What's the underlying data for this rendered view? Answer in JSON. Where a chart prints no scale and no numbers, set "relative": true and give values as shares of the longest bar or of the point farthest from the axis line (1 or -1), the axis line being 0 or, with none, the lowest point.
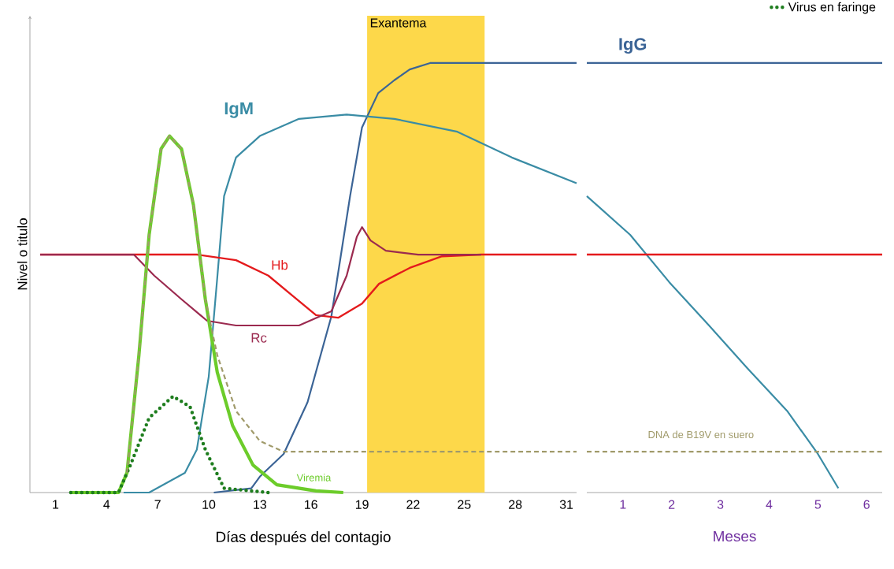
{
  "chart_data": [
    {
      "type": "line",
      "relative": true,
      "xlabel": "Días después del contagio",
      "ylabel": "Nivel o titulo",
      "xlim": [
        -0.5,
        31.6
      ],
      "xticks": [
        1,
        4,
        7,
        10,
        13,
        16,
        19,
        22,
        25,
        28,
        31
      ],
      "grid": false,
      "marker": "none",
      "legend": "top right",
      "bands": [
        {
          "axis": "x",
          "from": 19.3,
          "to": 26.2,
          "label": "Exantema",
          "color": "#fdd84a"
        }
      ],
      "series": [
        {
          "name": "IgG",
          "color": "#3b6496",
          "x": [
            10.3,
            12.5,
            13.0,
            14.4,
            15.8,
            17.2,
            18.3,
            19.0,
            19.95,
            20.9,
            21.8,
            23.0,
            31.6
          ],
          "values": [
            0,
            0.01,
            0.037,
            0.09,
            0.21,
            0.41,
            0.69,
            0.85,
            0.93,
            0.96,
            0.985,
            1,
            1
          ]
        },
        {
          "name": "IgM",
          "color": "#3a8ca5",
          "x": [
            5.0,
            6.5,
            8.6,
            9.3,
            10.0,
            10.5,
            10.9,
            11.6,
            13.0,
            15.3,
            18.1,
            20.9,
            24.6,
            27.8,
            31.6
          ],
          "values": [
            0,
            0,
            0.046,
            0.1,
            0.27,
            0.5,
            0.69,
            0.78,
            0.83,
            0.87,
            0.88,
            0.87,
            0.84,
            0.78,
            0.72
          ]
        },
        {
          "name": "Hb",
          "color": "#e41a1c",
          "x": [
            0.1,
            9.3,
            11.6,
            13.5,
            14.9,
            16.3,
            17.6,
            19.0,
            20.0,
            21.8,
            23.7,
            26.0,
            31.6
          ],
          "values": [
            0.554,
            0.554,
            0.541,
            0.505,
            0.459,
            0.413,
            0.407,
            0.44,
            0.486,
            0.523,
            0.55,
            0.554,
            0.554
          ]
        },
        {
          "name": "Rc",
          "color": "#9b2a4f",
          "x": [
            0.1,
            5.6,
            6.8,
            8.4,
            9.9,
            11.6,
            15.3,
            17.2,
            18.1,
            18.7,
            19.0,
            19.5,
            20.4,
            22.3,
            26.0
          ],
          "values": [
            0.554,
            0.554,
            0.505,
            0.45,
            0.4,
            0.389,
            0.389,
            0.422,
            0.505,
            0.596,
            0.618,
            0.587,
            0.563,
            0.554,
            0.554
          ]
        },
        {
          "name": "DNA de B19V en suero",
          "color": "#a09a6a",
          "line_style": "dashed",
          "x": [
            5.2,
            5.9,
            6.5,
            7.2,
            7.7,
            8.4,
            9.1,
            9.8,
            10.5,
            11.6,
            13.0,
            14.4,
            31.6
          ],
          "values": [
            0.046,
            0.32,
            0.6,
            0.8,
            0.83,
            0.8,
            0.67,
            0.45,
            0.32,
            0.19,
            0.12,
            0.095,
            0.095
          ]
        },
        {
          "name": "Viremia",
          "color": "#6ccc2a",
          "x": [
            1.9,
            4.7,
            5.2,
            5.9,
            6.5,
            7.2,
            7.7,
            8.4,
            9.1,
            9.8,
            10.5,
            11.4,
            12.6,
            14.0,
            16.3,
            17.9
          ],
          "values": [
            0,
            0,
            0.046,
            0.32,
            0.6,
            0.8,
            0.83,
            0.8,
            0.67,
            0.45,
            0.28,
            0.156,
            0.064,
            0.018,
            0.004,
            0
          ]
        },
        {
          "name": "Virus en faringe",
          "color": "#1e7d1e",
          "line_style": "dotted",
          "x": [
            1.9,
            4.7,
            5.4,
            6.5,
            7.9,
            8.9,
            9.8,
            10.9,
            13.5
          ],
          "values": [
            0,
            0,
            0.064,
            0.174,
            0.224,
            0.2,
            0.1,
            0.01,
            0
          ]
        }
      ]
    },
    {
      "type": "line",
      "relative": true,
      "xlabel": "Meses",
      "tick_labels": "x",
      "xlim": [
        0.26,
        6.32
      ],
      "xticks": [
        1,
        2,
        3,
        4,
        5,
        6
      ],
      "marker": "none",
      "series": [
        {
          "color": "#3b6496",
          "x": [
            0.26,
            6.32
          ],
          "values": [
            1,
            1
          ]
        },
        {
          "color": "#3a8ca5",
          "x": [
            0.26,
            1.15,
            1.95,
            2.76,
            3.55,
            4.37,
            5.0,
            5.42
          ],
          "values": [
            0.69,
            0.6,
            0.49,
            0.39,
            0.29,
            0.19,
            0.09,
            0.01
          ]
        },
        {
          "color": "#e41a1c",
          "x": [
            0.26,
            6.32
          ],
          "values": [
            0.554,
            0.554
          ]
        },
        {
          "color": "#a09a6a",
          "line_style": "dashed",
          "x": [
            0.26,
            6.32
          ],
          "values": [
            0.095,
            0.095
          ]
        }
      ]
    }
  ]
}
